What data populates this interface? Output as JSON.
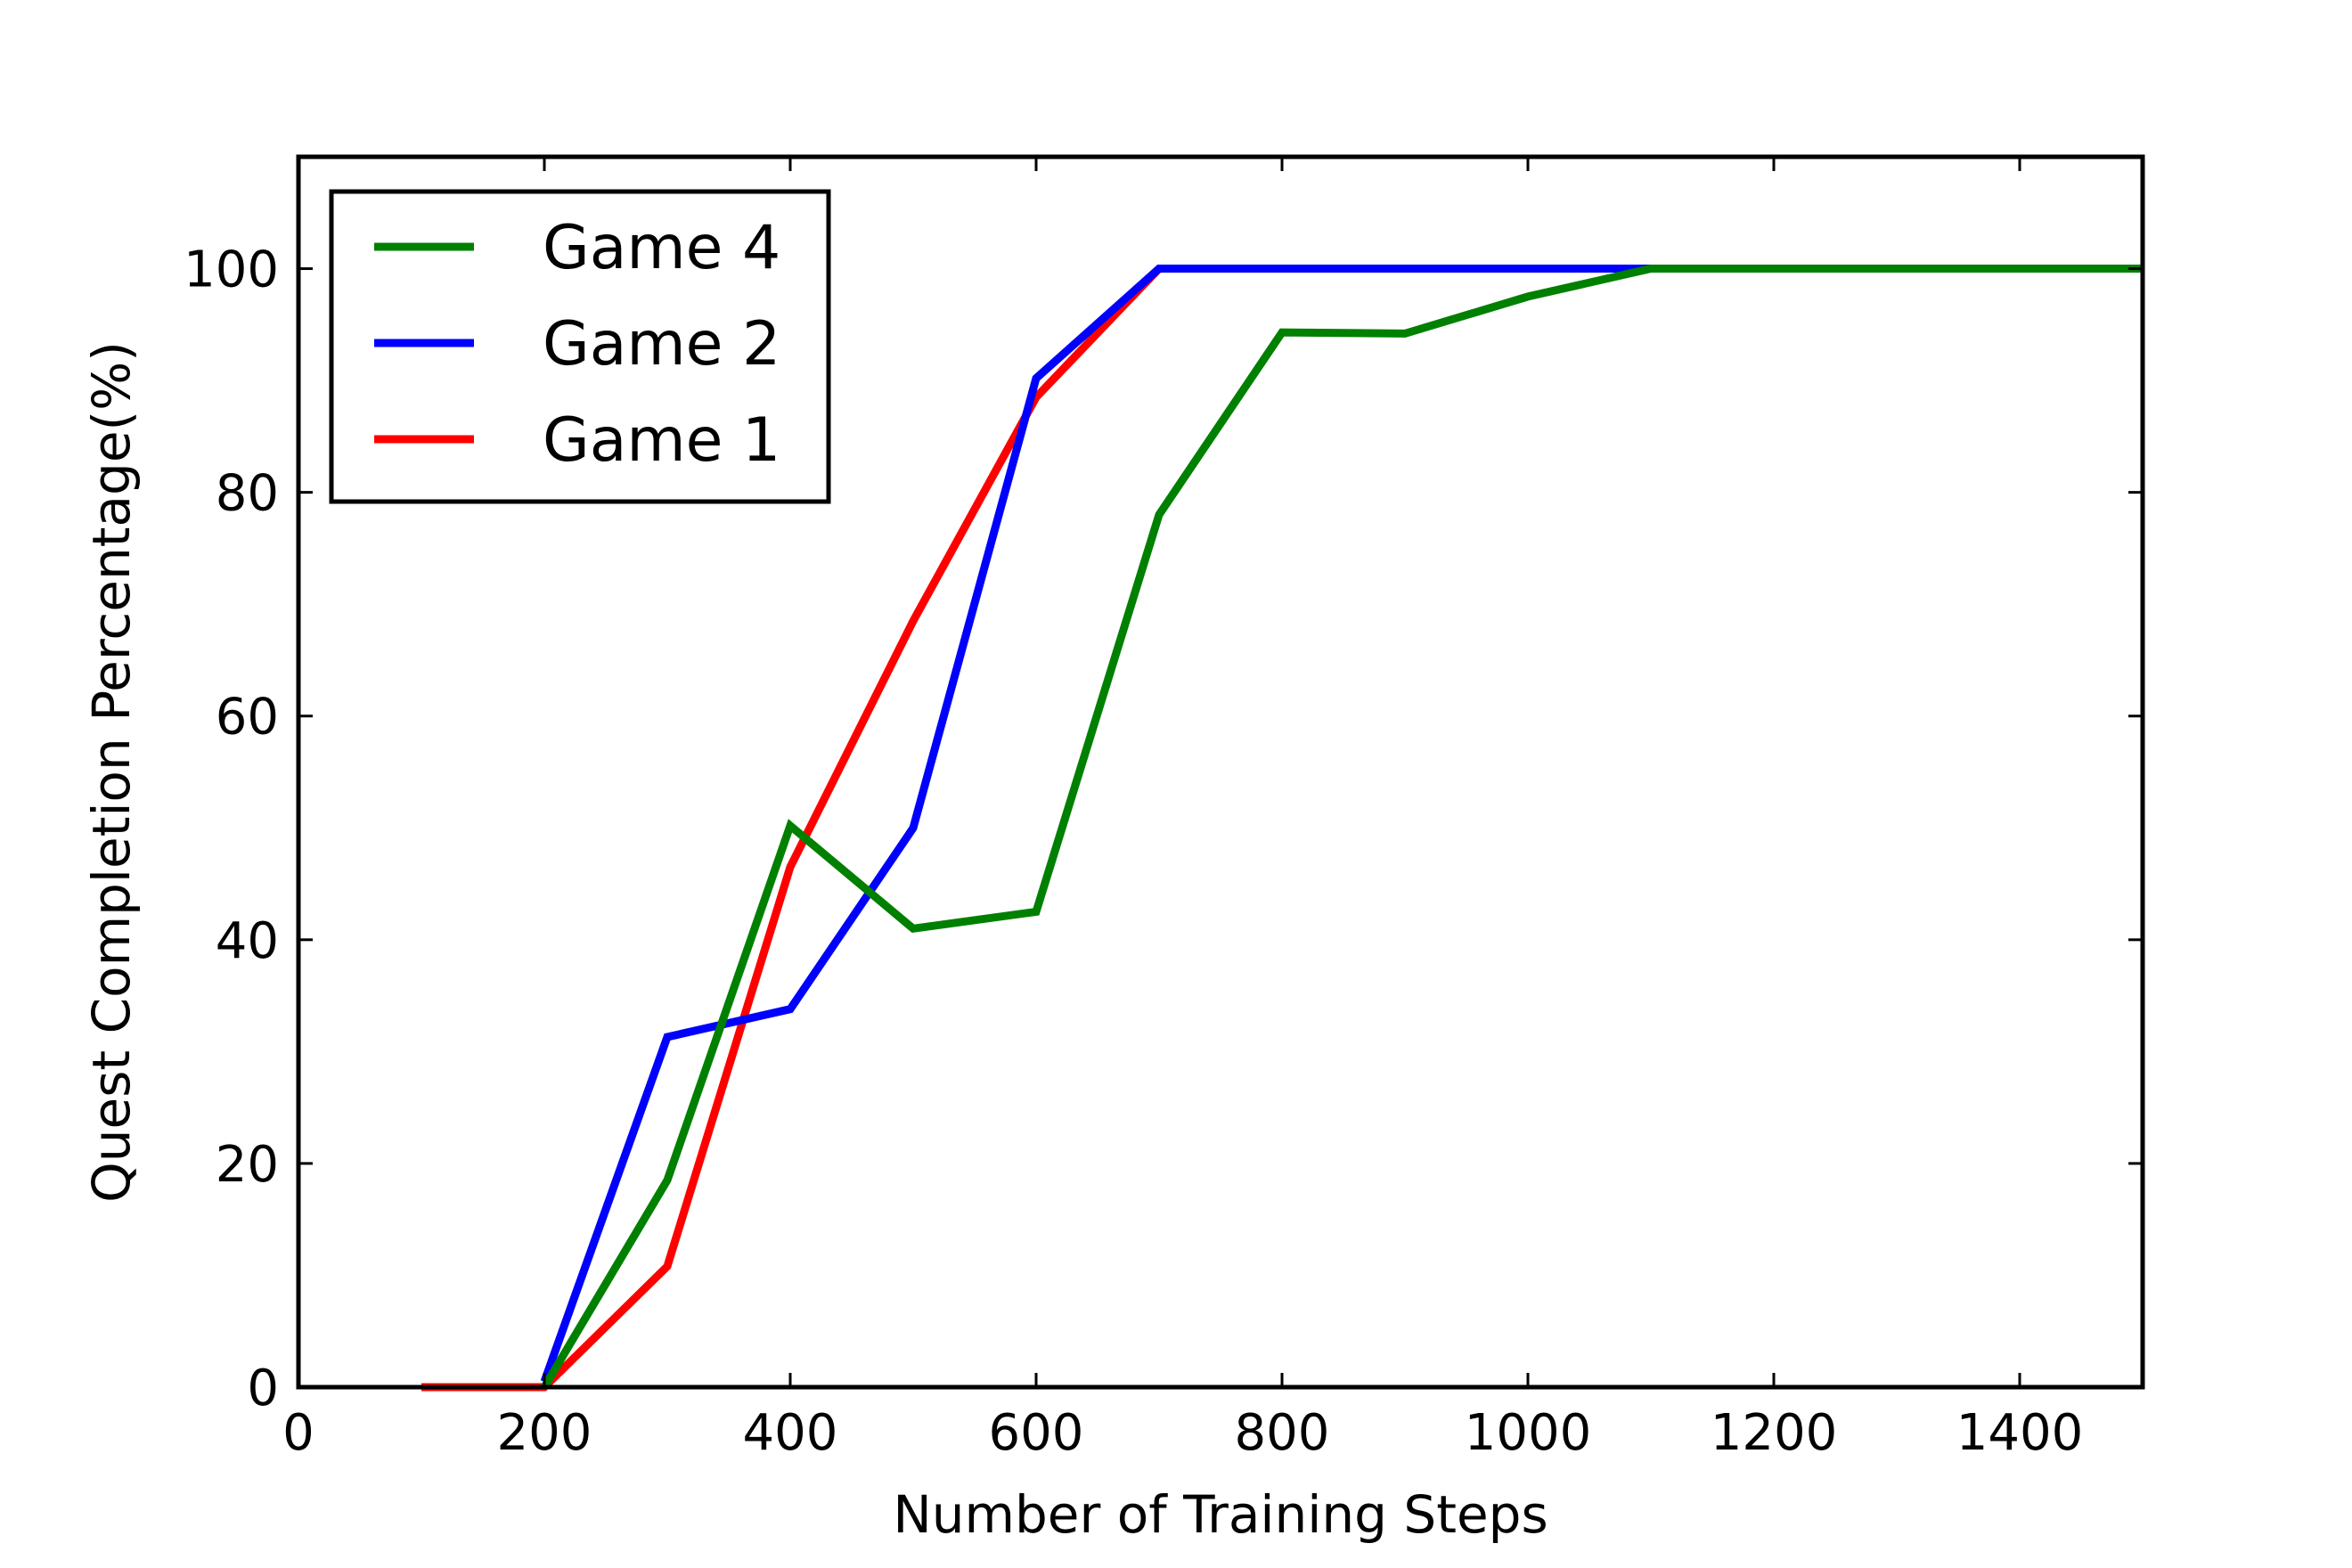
{
  "chart_data": {
    "type": "line",
    "xlabel": "Number of  Training Steps",
    "ylabel": "Quest Completion Percentage(%)",
    "xlim": [
      0,
      1500
    ],
    "ylim": [
      0,
      110
    ],
    "xticks": [
      0,
      200,
      400,
      600,
      800,
      1000,
      1200,
      1400
    ],
    "yticks": [
      0,
      20,
      40,
      60,
      80,
      100
    ],
    "grid": false,
    "legend_position": "upper-left",
    "series": [
      {
        "name": "Game 4",
        "color": "#008000",
        "x": [
          200,
          300,
          400,
          500,
          600,
          700,
          800,
          900,
          1000,
          1100,
          1200,
          1300,
          1400,
          1500
        ],
        "y": [
          0,
          18.5,
          50.2,
          41.0,
          42.5,
          78.0,
          94.3,
          94.2,
          97.5,
          100,
          100,
          100,
          100,
          100
        ]
      },
      {
        "name": "Game 2",
        "color": "#0000ff",
        "x": [
          200,
          300,
          400,
          500,
          600,
          700,
          800,
          900,
          1000,
          1100,
          1200,
          1300,
          1400,
          1500
        ],
        "y": [
          0.5,
          31.3,
          33.8,
          50.0,
          90.2,
          100,
          100,
          100,
          100,
          100,
          100,
          100,
          100,
          100
        ]
      },
      {
        "name": "Game 1",
        "color": "#ff0000",
        "x": [
          100,
          200,
          300,
          400,
          500,
          600,
          700,
          800,
          900,
          1000,
          1100,
          1200,
          1300,
          1400,
          1500
        ],
        "y": [
          0,
          0,
          10.8,
          46.5,
          68.5,
          88.5,
          100,
          100,
          100,
          100,
          100,
          100,
          100,
          100,
          100
        ]
      }
    ]
  }
}
